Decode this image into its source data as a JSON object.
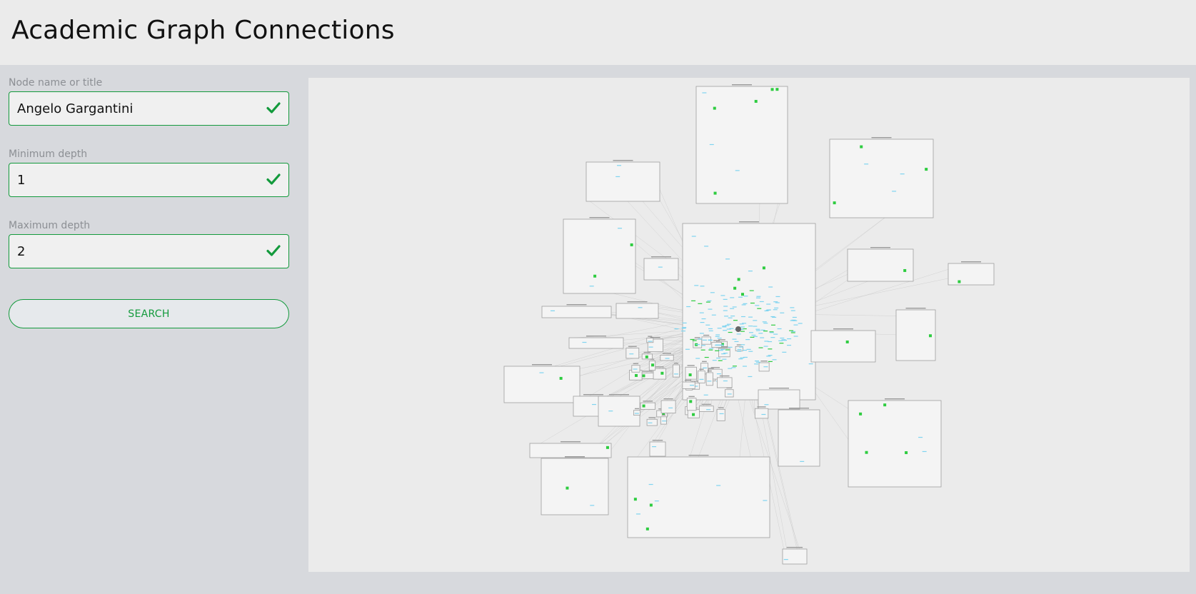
{
  "header": {
    "title": "Academic Graph Connections"
  },
  "form": {
    "node_name": {
      "label": "Node name or title",
      "value": "Angelo Gargantini"
    },
    "min_depth": {
      "label": "Minimum depth",
      "value": "1"
    },
    "max_depth": {
      "label": "Maximum depth",
      "value": "2"
    },
    "search_label": "SEARCH"
  },
  "colors": {
    "accent": "#139a3c",
    "node_primary": "#2ecc40",
    "node_secondary": "#7fd4f0",
    "community_box": "#f4f4f4"
  },
  "graph": {
    "type": "community-network"
  }
}
